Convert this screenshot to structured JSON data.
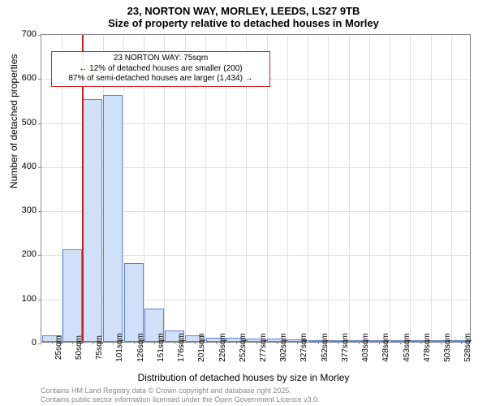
{
  "chart": {
    "type": "histogram",
    "title_line1": "23, NORTON WAY, MORLEY, LEEDS, LS27 9TB",
    "title_line2": "Size of property relative to detached houses in Morley",
    "title_fontsize": 13,
    "xlabel": "Distribution of detached houses by size in Morley",
    "ylabel": "Number of detached properties",
    "label_fontsize": 12,
    "background_color": "#ffffff",
    "grid_color": "#e0e0e0",
    "axis_color": "#888888",
    "bar_fill": "#d0e0f8",
    "bar_border": "#6080d0",
    "marker_color": "#d02020",
    "annotation_border": "#d02020",
    "ylim": [
      0,
      700
    ],
    "yticks": [
      0,
      100,
      200,
      300,
      400,
      500,
      600,
      700
    ],
    "xtick_labels": [
      "25sqm",
      "50sqm",
      "75sqm",
      "101sqm",
      "126sqm",
      "151sqm",
      "176sqm",
      "201sqm",
      "226sqm",
      "252sqm",
      "277sqm",
      "302sqm",
      "327sqm",
      "352sqm",
      "377sqm",
      "403sqm",
      "428sqm",
      "453sqm",
      "478sqm",
      "503sqm",
      "528sqm"
    ],
    "bar_values": [
      15,
      210,
      550,
      560,
      178,
      76,
      25,
      14,
      10,
      9,
      8,
      7,
      5,
      4,
      3,
      2,
      2,
      1,
      1,
      2,
      1
    ],
    "bar_width": 0.95,
    "marker_x_index": 2,
    "annotation": {
      "line1": "23 NORTON WAY: 75sqm",
      "line2": "← 12% of detached houses are smaller (200)",
      "line3": "87% of semi-detached houses are larger (1,434) →",
      "fontsize": 10
    },
    "footer_line1": "Contains HM Land Registry data © Crown copyright and database right 2025.",
    "footer_line2": "Contains public sector information licensed under the Open Government Licence v3.0.",
    "footer_color": "#888888"
  }
}
